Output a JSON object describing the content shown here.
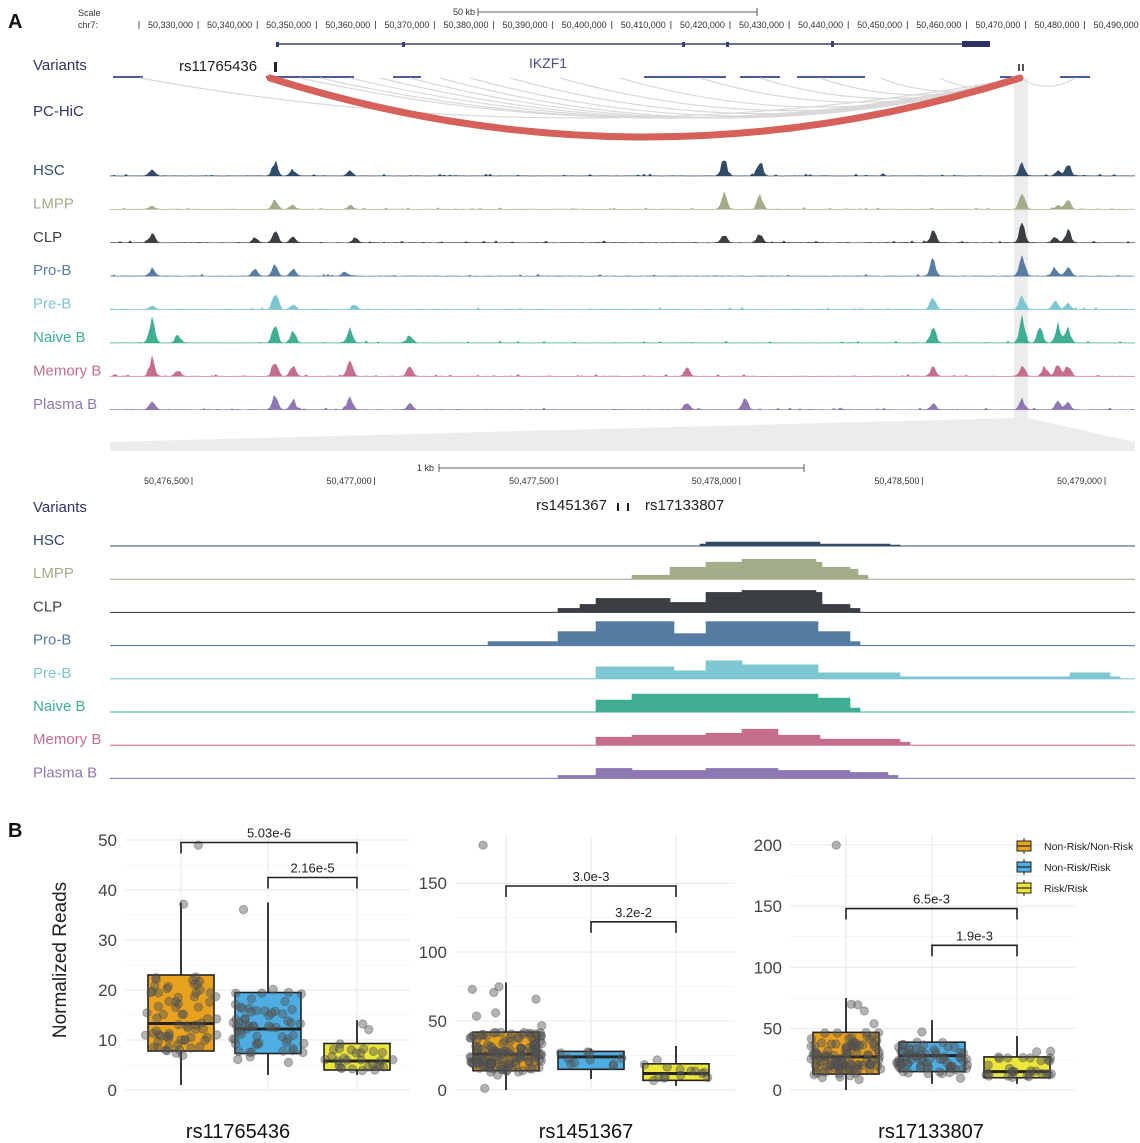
{
  "panel_a": {
    "label": "A",
    "scale_label": "Scale",
    "chrom_label": "chr7:",
    "scale_bar_label": "50 kb",
    "ticks": [
      "50,330,000",
      "50,340,000",
      "50,350,000",
      "50,360,000",
      "50,370,000",
      "50,380,000",
      "50,390,000",
      "50,400,000",
      "50,410,000",
      "50,420,000",
      "50,430,000",
      "50,440,000",
      "50,450,000",
      "50,460,000",
      "50,470,000",
      "50,480,000",
      "50,490,000"
    ],
    "gene_label": "IKZF1",
    "variants_label": "Variants",
    "variant_label": "rs11765436",
    "hic_label": "PC-HiC",
    "tracks": [
      {
        "name": "HSC",
        "color": "#2f4b66"
      },
      {
        "name": "LMPP",
        "color": "#a3ad8a"
      },
      {
        "name": "CLP",
        "color": "#3b3f44"
      },
      {
        "name": "Pro-B",
        "color": "#567ca3"
      },
      {
        "name": "Pre-B",
        "color": "#7fc6d3"
      },
      {
        "name": "Naive B",
        "color": "#3fae93"
      },
      {
        "name": "Memory B",
        "color": "#c56e8c"
      },
      {
        "name": "Plasma B",
        "color": "#8d78b3"
      }
    ],
    "hic_link_color": "#d6605a"
  },
  "zoom": {
    "scale_bar_label": "1 kb",
    "ticks": [
      "50,476,500",
      "50,477,000",
      "50,477,500",
      "50,478,000",
      "50,478,500",
      "50,479,000"
    ],
    "variants_label": "Variants",
    "variant_left": "rs1451367",
    "variant_right": "rs17133807"
  },
  "chart_data": [
    {
      "type": "box",
      "panel": "B",
      "title": "rs11765436",
      "ylabel": "Normalized Reads",
      "ylim": [
        0,
        51
      ],
      "yticks": [
        "0",
        "10",
        "20",
        "30",
        "40",
        "50"
      ],
      "yticks_values": [
        0,
        10,
        20,
        30,
        40,
        50
      ],
      "categories": [
        "Non-Risk/Non-Risk",
        "Non-Risk/Risk",
        "Risk/Risk"
      ],
      "boxes": [
        {
          "q1": 7.8,
          "median": 13.3,
          "q3": 23,
          "whisker_low": 1,
          "whisker_high": 37.5
        },
        {
          "q1": 7.3,
          "median": 12.2,
          "q3": 19.5,
          "whisker_low": 3,
          "whisker_high": 37.5
        },
        {
          "q1": 4,
          "median": 5.8,
          "q3": 9.3,
          "whisker_low": 3,
          "whisker_high": 14
        }
      ],
      "brackets": [
        {
          "from": 0,
          "to": 2,
          "y": 49.5,
          "label": "5.03e-6"
        },
        {
          "from": 1,
          "to": 2,
          "y": 42.5,
          "label": "2.16e-5"
        }
      ],
      "seed": 11,
      "n_points": [
        70,
        62,
        30
      ]
    },
    {
      "type": "box",
      "panel": "B",
      "title": "rs1451367",
      "ylabel": "",
      "ylim": [
        0,
        185
      ],
      "yticks": [
        "0",
        "50",
        "100",
        "150"
      ],
      "yticks_values": [
        0,
        50,
        100,
        150
      ],
      "categories": [
        "Non-Risk/Non-Risk",
        "Non-Risk/Risk",
        "Risk/Risk"
      ],
      "boxes": [
        {
          "q1": 14,
          "median": 26,
          "q3": 42,
          "whisker_low": 0,
          "whisker_high": 78
        },
        {
          "q1": 15,
          "median": 24,
          "q3": 28,
          "whisker_low": 8,
          "whisker_high": 30
        },
        {
          "q1": 7,
          "median": 12,
          "q3": 19,
          "whisker_low": 3,
          "whisker_high": 32
        }
      ],
      "brackets": [
        {
          "from": 0,
          "to": 2,
          "y": 148,
          "label": "3.0e-3"
        },
        {
          "from": 1,
          "to": 2,
          "y": 122,
          "label": "3.2e-2"
        }
      ],
      "seed": 23,
      "n_points": [
        150,
        10,
        14
      ]
    },
    {
      "type": "box",
      "panel": "B",
      "title": "rs17133807",
      "ylabel": "",
      "ylim": [
        0,
        208
      ],
      "yticks": [
        "0",
        "50",
        "100",
        "150",
        "200"
      ],
      "yticks_values": [
        0,
        50,
        100,
        150,
        200
      ],
      "categories": [
        "Non-Risk/Non-Risk",
        "Non-Risk/Risk",
        "Risk/Risk"
      ],
      "boxes": [
        {
          "q1": 13,
          "median": 27,
          "q3": 47,
          "whisker_low": 0,
          "whisker_high": 75
        },
        {
          "q1": 15,
          "median": 28,
          "q3": 39,
          "whisker_low": 5,
          "whisker_high": 57
        },
        {
          "q1": 10,
          "median": 15,
          "q3": 27,
          "whisker_low": 5,
          "whisker_high": 44
        }
      ],
      "brackets": [
        {
          "from": 0,
          "to": 2,
          "y": 148,
          "label": "6.5e-3"
        },
        {
          "from": 1,
          "to": 2,
          "y": 118,
          "label": "1.9e-3"
        }
      ],
      "seed": 37,
      "n_points": [
        110,
        70,
        30
      ],
      "legend": {
        "placement": "top-right",
        "entries": [
          {
            "label": "Non-Risk/Non-Risk",
            "color": "#e8a21f"
          },
          {
            "label": "Non-Risk/Risk",
            "color": "#4eaee3"
          },
          {
            "label": "Risk/Risk",
            "color": "#ece53a"
          }
        ]
      }
    }
  ],
  "panel_b": {
    "label": "B"
  }
}
